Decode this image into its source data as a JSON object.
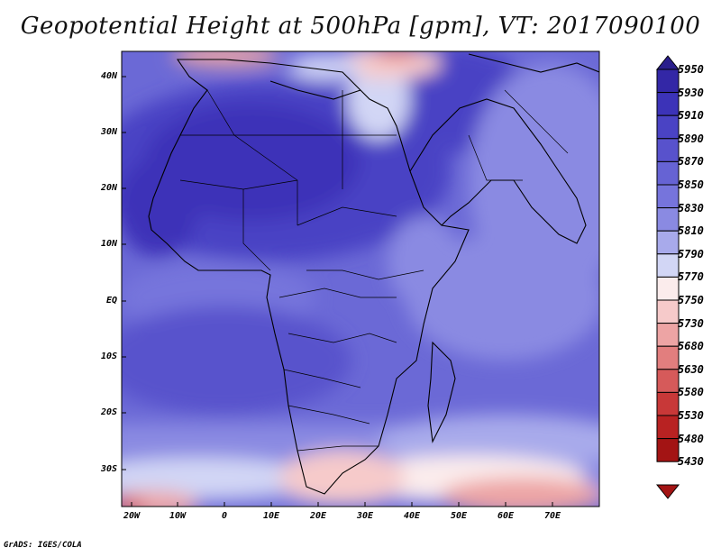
{
  "title": "Geopotential Height at 500hPa [gpm], VT: 2017090100",
  "credit": "GrADS: IGES/COLA",
  "map": {
    "lat_labels": [
      "40N",
      "30N",
      "20N",
      "10N",
      "EQ",
      "10S",
      "20S",
      "30S"
    ],
    "lon_labels": [
      "20W",
      "10W",
      "0",
      "10E",
      "20E",
      "30E",
      "40E",
      "50E",
      "60E",
      "70E"
    ]
  },
  "colorbar": {
    "levels": [
      "5950",
      "5930",
      "5910",
      "5890",
      "5870",
      "5850",
      "5830",
      "5810",
      "5790",
      "5770",
      "5750",
      "5730",
      "5680",
      "5630",
      "5580",
      "5530",
      "5480",
      "5430"
    ],
    "colors": [
      "#2a1e8c",
      "#3327a6",
      "#3c33b8",
      "#4a43c4",
      "#5852cc",
      "#6663d4",
      "#7674dc",
      "#8a8ae2",
      "#a8aaeb",
      "#d2d6f5",
      "#fbecec",
      "#f6caca",
      "#eda4a4",
      "#e27e7e",
      "#d65a5a",
      "#c83838",
      "#b82222",
      "#a31414"
    ]
  }
}
